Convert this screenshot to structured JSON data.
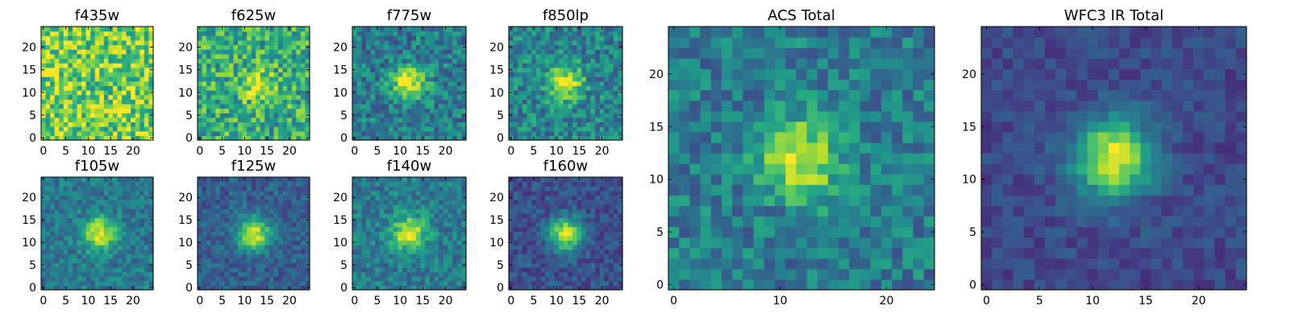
{
  "chart_data": [
    {
      "type": "heatmap",
      "title": "f435w",
      "x_ticks": [
        "0",
        "5",
        "10",
        "15",
        "20"
      ],
      "y_ticks": [
        "0",
        "5",
        "10",
        "15",
        "20"
      ],
      "xlim": [
        0,
        24
      ],
      "ylim": [
        0,
        24
      ],
      "colormap": "viridis",
      "source_center": null,
      "source_peak": 0.0,
      "noise": 0.55,
      "background": 0.78
    },
    {
      "type": "heatmap",
      "title": "f625w",
      "x_ticks": [
        "0",
        "5",
        "10",
        "15",
        "20"
      ],
      "y_ticks": [
        "0",
        "5",
        "10",
        "15",
        "20"
      ],
      "xlim": [
        0,
        24
      ],
      "ylim": [
        0,
        24
      ],
      "colormap": "viridis",
      "source_center": [
        12.5,
        12
      ],
      "source_peak": 0.28,
      "noise": 0.5,
      "background": 0.62
    },
    {
      "type": "heatmap",
      "title": "f775w",
      "x_ticks": [
        "0",
        "5",
        "10",
        "15",
        "20"
      ],
      "y_ticks": [
        "0",
        "5",
        "10",
        "15",
        "20"
      ],
      "xlim": [
        0,
        24
      ],
      "ylim": [
        0,
        24
      ],
      "colormap": "viridis",
      "source_center": [
        12,
        12
      ],
      "source_peak": 0.55,
      "noise": 0.4,
      "background": 0.42
    },
    {
      "type": "heatmap",
      "title": "f850lp",
      "x_ticks": [
        "0",
        "5",
        "10",
        "15",
        "20"
      ],
      "y_ticks": [
        "0",
        "5",
        "10",
        "15",
        "20"
      ],
      "xlim": [
        0,
        24
      ],
      "ylim": [
        0,
        24
      ],
      "colormap": "viridis",
      "source_center": [
        12,
        12
      ],
      "source_peak": 0.55,
      "noise": 0.4,
      "background": 0.45
    },
    {
      "type": "heatmap",
      "title": "f105w",
      "x_ticks": [
        "0",
        "5",
        "10",
        "15",
        "20"
      ],
      "y_ticks": [
        "0",
        "5",
        "10",
        "15",
        "20"
      ],
      "xlim": [
        0,
        24
      ],
      "ylim": [
        0,
        24
      ],
      "colormap": "viridis",
      "source_center": [
        12.5,
        12
      ],
      "source_peak": 0.6,
      "noise": 0.28,
      "background": 0.4
    },
    {
      "type": "heatmap",
      "title": "f125w",
      "x_ticks": [
        "0",
        "5",
        "10",
        "15",
        "20"
      ],
      "y_ticks": [
        "0",
        "5",
        "10",
        "15",
        "20"
      ],
      "xlim": [
        0,
        24
      ],
      "ylim": [
        0,
        24
      ],
      "colormap": "viridis",
      "source_center": [
        12,
        12
      ],
      "source_peak": 0.65,
      "noise": 0.25,
      "background": 0.3
    },
    {
      "type": "heatmap",
      "title": "f140w",
      "x_ticks": [
        "0",
        "5",
        "10",
        "15",
        "20"
      ],
      "y_ticks": [
        "0",
        "5",
        "10",
        "15",
        "20"
      ],
      "xlim": [
        0,
        24
      ],
      "ylim": [
        0,
        24
      ],
      "colormap": "viridis",
      "source_center": [
        12,
        12
      ],
      "source_peak": 0.55,
      "noise": 0.3,
      "background": 0.42
    },
    {
      "type": "heatmap",
      "title": "f160w",
      "x_ticks": [
        "0",
        "5",
        "10",
        "15",
        "20"
      ],
      "y_ticks": [
        "0",
        "5",
        "10",
        "15",
        "20"
      ],
      "xlim": [
        0,
        24
      ],
      "ylim": [
        0,
        24
      ],
      "colormap": "viridis",
      "source_center": [
        12,
        12
      ],
      "source_peak": 0.68,
      "noise": 0.25,
      "background": 0.25
    },
    {
      "type": "heatmap",
      "title": "ACS Total",
      "x_ticks": [
        "0",
        "10",
        "20"
      ],
      "y_ticks": [
        "0",
        "5",
        "10",
        "15",
        "20"
      ],
      "xlim": [
        0,
        24
      ],
      "ylim": [
        0,
        24
      ],
      "colormap": "viridis",
      "source_center": [
        12,
        12
      ],
      "source_peak": 0.55,
      "noise": 0.35,
      "background": 0.42
    },
    {
      "type": "heatmap",
      "title": "WFC3 IR Total",
      "x_ticks": [
        "0",
        "5",
        "10",
        "15",
        "20"
      ],
      "y_ticks": [
        "0",
        "5",
        "10",
        "15",
        "20"
      ],
      "xlim": [
        0,
        24
      ],
      "ylim": [
        0,
        24
      ],
      "colormap": "viridis",
      "source_center": [
        12,
        12
      ],
      "source_peak": 0.75,
      "noise": 0.18,
      "background": 0.22
    }
  ]
}
